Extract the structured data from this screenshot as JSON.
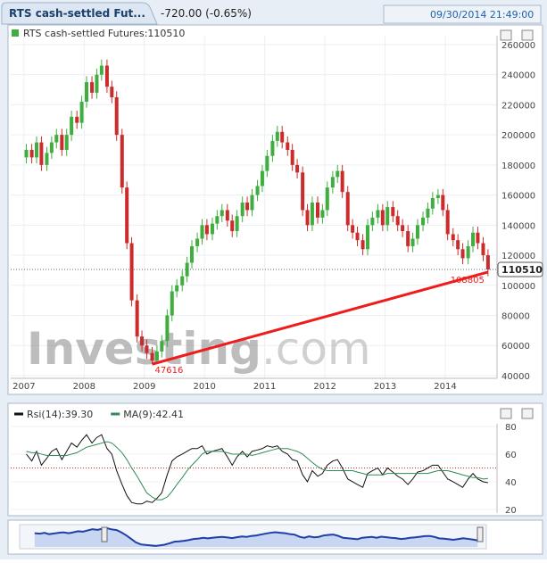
{
  "header": {
    "tab_title": "RTS cash-settled Fut...",
    "change": "-720.00 (-0.65%)",
    "datetime": "09/30/2014 21:49:00"
  },
  "chart_data": [
    {
      "type": "candlestick",
      "title": "RTS cash-settled Futures:110510",
      "watermark": [
        "Investing",
        ".com"
      ],
      "up_color": "#3fae3f",
      "down_color": "#cc2b2b",
      "x": [
        2007.04,
        2007.13,
        2007.21,
        2007.29,
        2007.38,
        2007.46,
        2007.54,
        2007.63,
        2007.71,
        2007.79,
        2007.88,
        2007.96,
        2008.04,
        2008.13,
        2008.21,
        2008.29,
        2008.38,
        2008.46,
        2008.54,
        2008.63,
        2008.71,
        2008.79,
        2008.88,
        2008.96,
        2009.04,
        2009.13,
        2009.21,
        2009.29,
        2009.38,
        2009.46,
        2009.54,
        2009.63,
        2009.71,
        2009.79,
        2009.88,
        2009.96,
        2010.04,
        2010.13,
        2010.21,
        2010.29,
        2010.38,
        2010.46,
        2010.54,
        2010.63,
        2010.71,
        2010.79,
        2010.88,
        2010.96,
        2011.04,
        2011.13,
        2011.21,
        2011.29,
        2011.38,
        2011.46,
        2011.54,
        2011.63,
        2011.71,
        2011.79,
        2011.88,
        2011.96,
        2012.04,
        2012.13,
        2012.21,
        2012.29,
        2012.38,
        2012.46,
        2012.54,
        2012.63,
        2012.71,
        2012.79,
        2012.88,
        2012.96,
        2013.04,
        2013.13,
        2013.21,
        2013.29,
        2013.38,
        2013.46,
        2013.54,
        2013.63,
        2013.71,
        2013.79,
        2013.88,
        2013.96,
        2014.04,
        2014.13,
        2014.21,
        2014.29,
        2014.38,
        2014.46,
        2014.54,
        2014.63,
        2014.71
      ],
      "candles": [
        [
          185000,
          194000,
          181000,
          190000
        ],
        [
          190000,
          194000,
          181000,
          185000
        ],
        [
          185000,
          199000,
          181000,
          195000
        ],
        [
          195000,
          199000,
          176000,
          180000
        ],
        [
          180000,
          192000,
          176000,
          188000
        ],
        [
          188000,
          199000,
          184000,
          195000
        ],
        [
          195000,
          204000,
          191000,
          200000
        ],
        [
          200000,
          204000,
          186000,
          190000
        ],
        [
          190000,
          204000,
          186000,
          200000
        ],
        [
          200000,
          216000,
          196000,
          212000
        ],
        [
          212000,
          216000,
          204000,
          208000
        ],
        [
          208000,
          226000,
          204000,
          222000
        ],
        [
          222000,
          239000,
          218000,
          235000
        ],
        [
          235000,
          239000,
          224000,
          228000
        ],
        [
          228000,
          244000,
          224000,
          240000
        ],
        [
          240000,
          250000,
          236000,
          246000
        ],
        [
          246000,
          250000,
          228000,
          232000
        ],
        [
          232000,
          236000,
          221000,
          225000
        ],
        [
          225000,
          229000,
          196000,
          200000
        ],
        [
          200000,
          204000,
          161000,
          165000
        ],
        [
          165000,
          169000,
          124000,
          128000
        ],
        [
          128000,
          132000,
          86000,
          90000
        ],
        [
          90000,
          94000,
          62000,
          66000
        ],
        [
          66000,
          70000,
          56000,
          60000
        ],
        [
          60000,
          64000,
          51000,
          55000
        ],
        [
          55000,
          59000,
          47616,
          50000
        ],
        [
          50000,
          60000,
          49000,
          56000
        ],
        [
          56000,
          67000,
          52000,
          63000
        ],
        [
          63000,
          84000,
          59000,
          80000
        ],
        [
          80000,
          100000,
          76000,
          96000
        ],
        [
          96000,
          104000,
          92000,
          100000
        ],
        [
          100000,
          110000,
          96000,
          106000
        ],
        [
          106000,
          119000,
          102000,
          115000
        ],
        [
          115000,
          130000,
          111000,
          126000
        ],
        [
          126000,
          135000,
          122000,
          131000
        ],
        [
          131000,
          144000,
          127000,
          140000
        ],
        [
          140000,
          144000,
          130000,
          134000
        ],
        [
          134000,
          145000,
          130000,
          141000
        ],
        [
          141000,
          150000,
          137000,
          146000
        ],
        [
          146000,
          154000,
          142000,
          150000
        ],
        [
          150000,
          154000,
          139000,
          143000
        ],
        [
          143000,
          147000,
          132000,
          136000
        ],
        [
          136000,
          150000,
          132000,
          146000
        ],
        [
          146000,
          159000,
          142000,
          155000
        ],
        [
          155000,
          159000,
          146000,
          150000
        ],
        [
          150000,
          164000,
          146000,
          160000
        ],
        [
          160000,
          170000,
          156000,
          166000
        ],
        [
          166000,
          180000,
          162000,
          176000
        ],
        [
          176000,
          190000,
          172000,
          186000
        ],
        [
          186000,
          200000,
          182000,
          196000
        ],
        [
          196000,
          206000,
          192000,
          202000
        ],
        [
          202000,
          206000,
          191000,
          195000
        ],
        [
          195000,
          199000,
          186000,
          190000
        ],
        [
          190000,
          194000,
          176000,
          180000
        ],
        [
          180000,
          184000,
          171000,
          175000
        ],
        [
          175000,
          179000,
          146000,
          150000
        ],
        [
          150000,
          154000,
          136000,
          140000
        ],
        [
          140000,
          159000,
          136000,
          155000
        ],
        [
          155000,
          159000,
          141000,
          145000
        ],
        [
          145000,
          154000,
          141000,
          150000
        ],
        [
          150000,
          169000,
          146000,
          165000
        ],
        [
          165000,
          176000,
          161000,
          172000
        ],
        [
          172000,
          180000,
          168000,
          176000
        ],
        [
          176000,
          180000,
          158000,
          162000
        ],
        [
          162000,
          166000,
          136000,
          140000
        ],
        [
          140000,
          144000,
          131000,
          135000
        ],
        [
          135000,
          139000,
          126000,
          130000
        ],
        [
          130000,
          134000,
          120000,
          124000
        ],
        [
          124000,
          144000,
          120000,
          140000
        ],
        [
          140000,
          149000,
          136000,
          145000
        ],
        [
          145000,
          154000,
          141000,
          150000
        ],
        [
          150000,
          154000,
          136000,
          140000
        ],
        [
          140000,
          156000,
          136000,
          152000
        ],
        [
          152000,
          156000,
          142000,
          146000
        ],
        [
          146000,
          150000,
          136000,
          140000
        ],
        [
          140000,
          144000,
          132000,
          136000
        ],
        [
          136000,
          140000,
          122000,
          126000
        ],
        [
          126000,
          135000,
          122000,
          131000
        ],
        [
          131000,
          144000,
          127000,
          140000
        ],
        [
          140000,
          149000,
          136000,
          145000
        ],
        [
          145000,
          155000,
          141000,
          151000
        ],
        [
          151000,
          162000,
          147000,
          158000
        ],
        [
          158000,
          164000,
          154000,
          160000
        ],
        [
          160000,
          164000,
          146000,
          150000
        ],
        [
          150000,
          154000,
          130000,
          134000
        ],
        [
          134000,
          138000,
          126000,
          130000
        ],
        [
          130000,
          134000,
          120000,
          124000
        ],
        [
          124000,
          128000,
          114000,
          118000
        ],
        [
          118000,
          130000,
          114000,
          126000
        ],
        [
          126000,
          139000,
          122000,
          135000
        ],
        [
          135000,
          139000,
          124000,
          128000
        ],
        [
          128000,
          132000,
          116000,
          120000
        ],
        [
          120000,
          124000,
          106000,
          110510
        ]
      ],
      "trendline": {
        "x": [
          2009.13,
          2014.71
        ],
        "values": [
          47616,
          108805
        ],
        "color": "#ee1c1c"
      },
      "xlim": [
        2006.78,
        2014.86
      ],
      "xticks": [
        2007,
        2008,
        2009,
        2010,
        2011,
        2012,
        2013,
        2014
      ],
      "ylim": [
        38200,
        265900
      ],
      "yticks": [
        40000,
        60000,
        80000,
        100000,
        120000,
        140000,
        160000,
        180000,
        200000,
        220000,
        240000,
        260000
      ]
    },
    {
      "type": "line",
      "reference_line": 50,
      "series": [
        {
          "name": "Rsi(14):39.30",
          "color": "#111111",
          "values": [
            60,
            55,
            62,
            52,
            57,
            62,
            64,
            56,
            62,
            68,
            65,
            70,
            74,
            68,
            72,
            74,
            64,
            60,
            48,
            38,
            30,
            25,
            24,
            24,
            26,
            25,
            28,
            32,
            45,
            55,
            58,
            60,
            62,
            64,
            64,
            66,
            60,
            62,
            63,
            64,
            58,
            52,
            58,
            62,
            58,
            62,
            63,
            64,
            66,
            65,
            66,
            62,
            60,
            56,
            55,
            45,
            40,
            48,
            44,
            46,
            52,
            55,
            56,
            50,
            42,
            40,
            38,
            36,
            46,
            48,
            50,
            45,
            50,
            47,
            44,
            42,
            38,
            42,
            47,
            48,
            50,
            52,
            52,
            47,
            42,
            40,
            38,
            36,
            42,
            46,
            42,
            40,
            39.3
          ]
        },
        {
          "name": "MA(9):42.41",
          "color": "#2e8b57",
          "values": [
            62,
            61,
            61,
            60,
            59,
            59,
            59,
            59,
            59,
            60,
            61,
            63,
            65,
            66,
            67,
            68,
            69,
            68,
            65,
            61,
            56,
            50,
            44,
            38,
            32,
            29,
            27,
            27,
            29,
            33,
            38,
            43,
            48,
            52,
            56,
            60,
            62,
            62,
            62,
            62,
            61,
            60,
            60,
            60,
            60,
            59,
            60,
            61,
            62,
            63,
            64,
            64,
            64,
            63,
            62,
            60,
            57,
            54,
            51,
            49,
            48,
            48,
            48,
            48,
            48,
            48,
            47,
            46,
            45,
            45,
            45,
            45,
            46,
            46,
            46,
            46,
            46,
            46,
            46,
            46,
            46,
            47,
            48,
            48,
            48,
            47,
            46,
            45,
            44,
            43,
            43,
            42,
            42.41
          ]
        }
      ],
      "ylim": [
        17.4,
        81.9
      ],
      "yticks": [
        20,
        40,
        60,
        80
      ]
    }
  ]
}
